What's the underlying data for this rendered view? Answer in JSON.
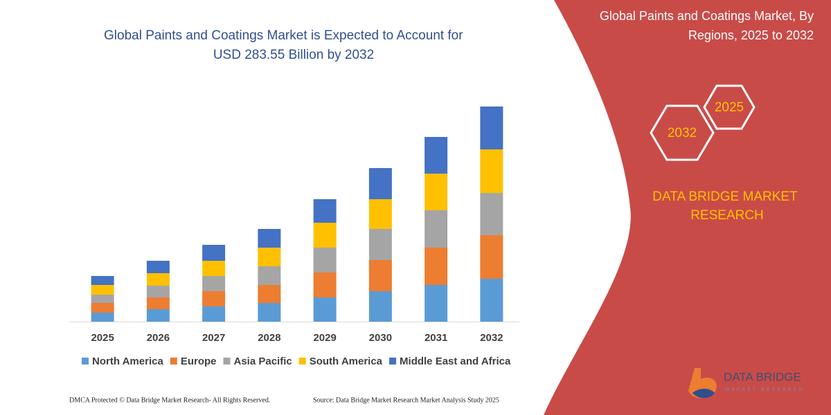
{
  "chart_data": {
    "type": "stacked-bar",
    "title_lines": [
      "Global Paints and Coatings Market is Expected to Account for",
      "USD 283.55 Billion by 2032"
    ],
    "categories": [
      "2025",
      "2026",
      "2027",
      "2028",
      "2029",
      "2030",
      "2031",
      "2032"
    ],
    "series": [
      {
        "name": "North America",
        "color": "#5b9bd5",
        "values": [
          13,
          18,
          22,
          27,
          35,
          44,
          53,
          62
        ]
      },
      {
        "name": "Europe",
        "color": "#ed7d31",
        "values": [
          14,
          17,
          22,
          26,
          36,
          45,
          54,
          63
        ]
      },
      {
        "name": "Asia Pacific",
        "color": "#a5a5a5",
        "values": [
          12,
          17,
          22,
          27,
          36,
          45,
          54,
          61
        ]
      },
      {
        "name": "South America",
        "color": "#ffc000",
        "values": [
          14,
          18,
          22,
          27,
          36,
          43,
          53,
          63
        ]
      },
      {
        "name": "Middle East and Africa",
        "color": "#4472c4",
        "values": [
          13,
          18,
          23,
          27,
          34,
          45,
          53,
          62
        ]
      }
    ],
    "ylim": [
      0,
      320
    ]
  },
  "panel": {
    "title_lines": [
      "Global Paints and Coatings Market, By",
      "Regions, 2025 to 2032"
    ],
    "hex_labels": [
      "2032",
      "2025"
    ],
    "brand_lines": [
      "DATA BRIDGE MARKET",
      "RESEARCH"
    ],
    "logo": "DATA BRIDGE",
    "logo_sub": "MARKET RESEARCH"
  },
  "footer": {
    "left": "DMCA Protected © Data Bridge Market Research- All Rights Reserved.",
    "right": "Source: Data Bridge Market Research Market Analysis Study 2025"
  }
}
